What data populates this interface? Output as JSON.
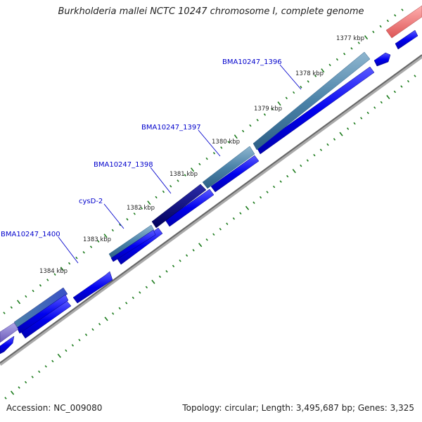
{
  "title": "Burkholderia mallei NCTC 10247 chromosome I, complete genome",
  "accession": "Accession: NC_009080",
  "topology": "Topology: circular; Length: 3,495,687 bp; Genes: 3,325",
  "tick_labels": [
    "1377 kbp",
    "1378 kbp",
    "1379 kbp",
    "1380 kbp",
    "1381 kbp",
    "1382 kbp",
    "1383 kbp",
    "1384 kbp"
  ],
  "gene_labels": [
    "BMA10247_1396",
    "BMA10247_1397",
    "BMA10247_1398",
    "cysD-2",
    "BMA10247_1400"
  ],
  "colors": {
    "tick": "#1a7a1a",
    "label_blue": "#0000cc",
    "gene_blue": "#0000ee",
    "gene_teal": "#4f86aa",
    "gene_navy": "#000080",
    "gene_pink": "#ee7777",
    "gene_purple": "#7a6ac8",
    "backbone": "#888888"
  }
}
